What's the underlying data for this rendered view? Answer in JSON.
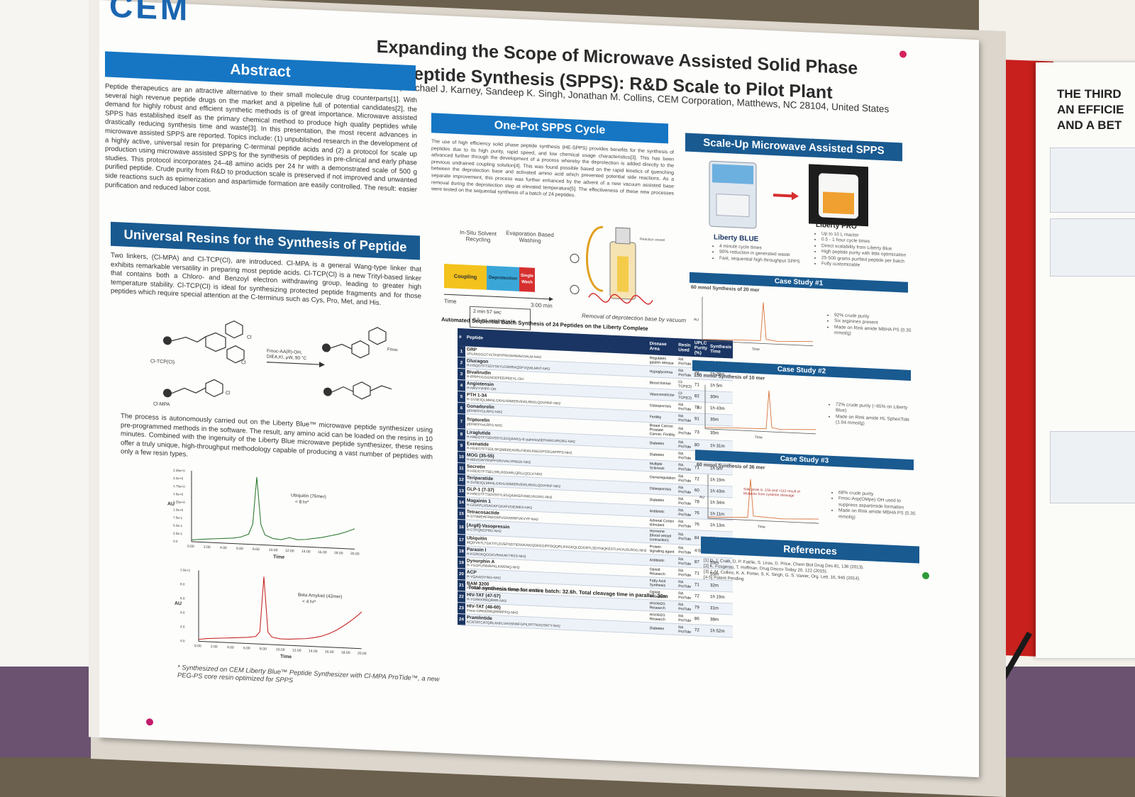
{
  "poster": {
    "logo": "CEM",
    "title_line1": "Expanding the Scope of Microwave Assisted Solid Phase",
    "title_line2": "Peptide Synthesis (SPPS): R&D Scale to Pilot Plant",
    "authors": "Keith A. Porter, Michael J. Karney, Sandeep K. Singh, Jonathan M. Collins, CEM Corporation, Matthews, NC 28104, United States"
  },
  "abstract": {
    "heading": "Abstract",
    "body": "Peptide therapeutics are an attractive alternative to their small molecule drug counterparts[1]. With several high revenue peptide drugs on the market and a pipeline full of potential candidates[2], the demand for highly robust and efficient synthetic methods is of great importance. Microwave assisted SPPS has established itself as the primary chemical method to produce high quality peptides while drastically reducing synthesis time and waste[3]. In this presentation, the most recent advances in microwave assisted SPPS are reported. Topics include: (1) unpublished research in the development of a highly active, universal resin for preparing C-terminal peptide acids and (2) a protocol for scale up production using microwave assisted SPPS for the synthesis of peptides in pre-clinical and early phase studies. This protocol incorporates 24–48 amino acids per 24 hr with a demonstrated scale of 500 g purified peptide. Crude purity from R&D to production scale is preserved if not improved and unwanted side reactions such as epimerization and aspartimide formation are easily controlled. The result: easier purification and reduced labor cost."
  },
  "resins": {
    "heading": "Universal Resins for the Synthesis of Peptide Acids",
    "body": "Two linkers, (Cl-MPA) and Cl-TCP(Cl), are introduced. Cl-MPA is a general Wang-type linker that exhibits remarkable versatility in preparing most peptide acids. Cl-TCP(Cl) is a new Trityl-based linker that contains both a Chloro- and Benzoyl electron withdrawing group, leading to greater high temperature stability. Cl-TCP(Cl) is ideal for synthesizing protected peptide fragments and for those peptides which require special attention at the C-terminus such as Cys, Pro, Met, and His.",
    "label_tcp": "Cl-TCP(Cl)",
    "label_mpa": "Cl-MPA",
    "reaction_line1": "Fmoc-AA(R)-OH,",
    "reaction_line2": "DIEA,KI, μW, 90 °C",
    "process_text": "The process is autonomously carried out on the Liberty Blue™ microwave peptide synthesizer using pre-programmed methods in the software. The result, any amino acid can be loaded on the resins in 10 minutes. Combined with the ingenuity of the Liberty Blue microwave peptide synthesizer, these resins offer a truly unique, high-throughput methodology capable of producing a vast number of peptides with only a few resin types.",
    "footnote": "* Synthesized on CEM Liberty Blue™ Peptide Synthesizer with Cl-MPA ProTide™, a new PEG-PS core resin optimized for SPPS"
  },
  "chart_data": [
    {
      "type": "line",
      "title": "",
      "ylabel": "AU",
      "xlabel": "Time",
      "annotation": "Ubiquitin (76mer)",
      "annotation2": "< 8 hr*",
      "x_ticks": [
        "0.00",
        "2.00",
        "4.00",
        "6.00",
        "8.00",
        "10.00",
        "12.00",
        "14.00",
        "16.00",
        "18.00",
        "20.00"
      ],
      "y_ticks": [
        "0.0",
        "2.5e-1",
        "5.0e-1",
        "7.5e-1",
        "1.0e+0",
        "1.25e+0",
        "1.5e+0",
        "1.75e+0",
        "2.0e+0",
        "2.25e+0"
      ],
      "x": [
        0,
        1,
        2,
        3,
        4,
        5,
        6,
        7,
        7.5,
        8,
        8.5,
        9,
        10,
        11,
        12,
        13,
        14,
        15,
        16,
        17,
        18,
        19,
        20
      ],
      "y": [
        0.05,
        0.08,
        0.1,
        0.12,
        0.14,
        0.16,
        0.2,
        0.3,
        0.6,
        2.0,
        0.6,
        0.3,
        0.2,
        0.18,
        0.25,
        0.2,
        0.22,
        0.26,
        0.3,
        0.36,
        0.42,
        0.5,
        0.6
      ],
      "color": "#2f7d32"
    },
    {
      "type": "line",
      "title": "",
      "ylabel": "AU",
      "xlabel": "Time",
      "annotation": "Beta Amyloid (42mer)",
      "annotation2": "< 4 hr*",
      "x_ticks": [
        "0.00",
        "2.00",
        "4.00",
        "6.00",
        "8.00",
        "10.00",
        "12.00",
        "14.00",
        "16.00",
        "18.00",
        "20.00"
      ],
      "y_ticks": [
        "0.0",
        "2.0",
        "4.0",
        "6.0",
        "8.0",
        "1.0e+1"
      ],
      "x": [
        0,
        1,
        2,
        3,
        4,
        5,
        6,
        7,
        7.5,
        8,
        8.5,
        9,
        10,
        11,
        12,
        13,
        14,
        15,
        16,
        17,
        18,
        19,
        20
      ],
      "y": [
        0.3,
        0.5,
        0.6,
        0.7,
        0.8,
        0.9,
        1.0,
        1.2,
        2.0,
        11.0,
        2.0,
        1.2,
        1.0,
        1.0,
        1.1,
        1.2,
        1.4,
        1.7,
        2.2,
        2.9,
        3.8,
        4.8,
        6.0
      ],
      "color": "#c62828"
    }
  ],
  "cycle": {
    "heading": "One-Pot SPPS Cycle",
    "body": "The use of high efficiency solid phase peptide synthesis (HE-SPPS) provides benefits for the synthesis of peptides due to its high purity, rapid speed, and low chemical usage characteristics[3]. This has been advanced further through the development of a process whereby the deprotection is added directly to the previous undrained coupling solution[4]. This was found possible based on the rapid kinetics of quenching between the deprotection base and activated amino acid which prevented potential side reactions. As a separate improvement, this process was further enhanced by the advent of a new vacuum assisted base removal during the deprotection step at elevated temperature[5]. The effectiveness of these new processes were tested on the sequential synthesis of a batch of 24 peptides.",
    "label_insitu": "In-Situ Solvent Recycling",
    "label_evap": "Evaporation Based Washing",
    "seg_coupling": "Coupling",
    "seg_deprotection": "Deprotection",
    "seg_wash": "Single Wash",
    "time_label": "Time",
    "time_end": "3:00 min",
    "stat1": "2 min 57 sec",
    "stat2": "8.5 mL waste/cycle",
    "vacuum_caption": "Removal of deprotection base by vacuum",
    "reaction_vessel": "Reaction vessel",
    "colors": {
      "coupling": "#f4c21c",
      "deprotection": "#3aa6d8",
      "wash": "#d62f2f"
    }
  },
  "batch": {
    "heading": "Automated Sequential Batch Synthesis of 24 Peptides on the Liberty Complete",
    "columns": [
      "#",
      "Peptide",
      "Disease Area",
      "Resin Used",
      "UPLC Purity (%)",
      "Synthesis Time"
    ],
    "rows": [
      {
        "n": "1",
        "name": "GRP",
        "seq": "VPLPAGGGTVLTKMYPRGNHWAVGHLM-NH2",
        "area": "Regulates gastrin release",
        "resin": "RA ProTide",
        "purity": "81",
        "time": "1h 22m"
      },
      {
        "n": "2",
        "name": "Glucagon",
        "seq": "H-HSQGTFTSDYSKYLDSRRAQDFVQWLMNT-NH2",
        "area": "Hypoglycemia",
        "resin": "RA ProTide",
        "purity": "75",
        "time": "1h 28m"
      },
      {
        "n": "3",
        "name": "Bivalirudin",
        "seq": "H-fPRPGGGGNGDFEEIPEEYL-OH",
        "area": "Blood thinner",
        "resin": "Cl-TCP(Cl)",
        "purity": "71",
        "time": "1h 5m"
      },
      {
        "n": "4",
        "name": "Angiotensin",
        "seq": "H-NRVYVHPF-OH",
        "area": "Vasoconstrictor",
        "resin": "Cl-TCP(Cl)",
        "purity": "82",
        "time": "30m"
      },
      {
        "n": "5",
        "name": "PTH 1-34",
        "seq": "H-SVSEIQLMHNLGKHLNSMERVEWLRKKLQDVHNF-NH2",
        "area": "Osteoporosis",
        "resin": "RA ProTide",
        "purity": "72",
        "time": "1h 43m"
      },
      {
        "n": "6",
        "name": "Gonadorelin",
        "seq": "pEHWSYGLRPG-NH2",
        "area": "Fertility",
        "resin": "RA ProTide",
        "purity": "91",
        "time": "35m"
      },
      {
        "n": "7",
        "name": "Triptorelin",
        "seq": "pEHWSYwLRPG-NH2",
        "area": "Breast Cancer, Prostate Cancer, Fertility",
        "resin": "RA ProTide",
        "purity": "73",
        "time": "35m"
      },
      {
        "n": "8",
        "name": "Liraglutide",
        "seq": "H-HAEGTFTSDVSSYLEGQAAK(γ-E-palmitoyl)EFIAWLVRGRG-NH2",
        "area": "Diabetes",
        "resin": "RA ProTide",
        "purity": "80",
        "time": "1h 31m"
      },
      {
        "n": "9",
        "name": "Exenatide",
        "seq": "H-HGEGTFTSDLSKQMEEEAVRLFIEWLKNGGPSSGAPPPS-NH2",
        "area": "Diabetes",
        "resin": "RA ProTide",
        "purity": "74",
        "time": "1h 58m"
      },
      {
        "n": "10",
        "name": "MOG (35-55)",
        "seq": "H-MEVGWYRSPFSRVVHLYRNGK-NH2",
        "area": "Multiple Sclerosis",
        "resin": "RA ProTide",
        "purity": "71",
        "time": "1h 5m"
      },
      {
        "n": "11",
        "name": "Secretin",
        "seq": "H-HSDGTFTSELSRLRDSARLQRLLQGLV-NH2",
        "area": "Osmoregulation",
        "resin": "RA ProTide",
        "purity": "72",
        "time": "1h 19m"
      },
      {
        "n": "12",
        "name": "Teriparatide",
        "seq": "H-SVSEIQLMHNLGKHLNSMERVEWLRKKLQDVHNF-NH2",
        "area": "Osteoporosis",
        "resin": "RA ProTide",
        "purity": "60",
        "time": "1h 43m"
      },
      {
        "n": "13",
        "name": "GLP-1 (7-37)",
        "seq": "H-HAEGTFTSDVSSYLEGQAAKEFIAWLVKGRG-NH2",
        "area": "Diabetes",
        "resin": "RA ProTide",
        "purity": "78",
        "time": "1h 34m"
      },
      {
        "n": "14",
        "name": "Magainin 1",
        "seq": "H-GIGKFLHSAGKFGKAFVGEIMKS-NH2",
        "area": "Antibiotic",
        "resin": "RA ProTide",
        "purity": "76",
        "time": "1h 11m"
      },
      {
        "n": "15",
        "name": "Tetracosactide",
        "seq": "H-SYSMEHFRWGKPVGKKRRPVKVYP-NH2",
        "area": "Adrenal Cortex stimulant",
        "resin": "RA ProTide",
        "purity": "76",
        "time": "1h 13m"
      },
      {
        "n": "16",
        "name": "[Arg8]-Vasopressin",
        "seq": "H-CYFQNCPRG-NH2",
        "area": "Hormone (blood vessel contraction)",
        "resin": "RA ProTide",
        "purity": "84",
        "time": "32m"
      },
      {
        "n": "17",
        "name": "Ubiquitin",
        "seq": "MQIFVKTLTGKTITLEVEPSDTIENVKAKIQDKEGIPPDQQRLIFAGKQLEDGRTLSDYNIQKESTLHLVLRLRGG-NH2",
        "area": "Protein signaling agent",
        "resin": "RA ProTide",
        "purity": "4:50",
        "time": "3h 44m"
      },
      {
        "n": "18",
        "name": "Parasin I",
        "seq": "H-KGRGKQGGKVRAKAKTRSS-NH2",
        "area": "Antibiotic",
        "resin": "RA ProTide",
        "purity": "87",
        "time": "59m"
      },
      {
        "n": "19",
        "name": "Dynorphin A",
        "seq": "H-YGGFLRRIRPKLKWDNQ-NH2",
        "area": "Opioid Research",
        "resin": "RA ProTide",
        "purity": "71",
        "time": "55m"
      },
      {
        "n": "20",
        "name": "ACP",
        "seq": "H-VQAAIDYING-NH2",
        "area": "Fatty Acid Synthesis",
        "resin": "RA ProTide",
        "purity": "71",
        "time": "32m"
      },
      {
        "n": "21",
        "name": "BAM 3200",
        "seq": "H-YGGFMRRVGRPEWWMDYQKRYGGFL-NH2",
        "area": "Opioid Research",
        "resin": "RA ProTide",
        "purity": "72",
        "time": "1h 19m"
      },
      {
        "n": "22",
        "name": "HIV-TAT (47-57)",
        "seq": "H-YGRKKRRQRRR-NH2",
        "area": "HIV/AIDS Research",
        "resin": "RA ProTide",
        "purity": "79",
        "time": "31m"
      },
      {
        "n": "23",
        "name": "HIV-TAT (48-60)",
        "seq": "Fmoc-GRKKRRQRRRPPQ-NH2",
        "area": "HIV/AIDS Research",
        "resin": "RA ProTide",
        "purity": "86",
        "time": "38m"
      },
      {
        "n": "24",
        "name": "Pramlintide",
        "seq": "KCNTATCATQRLANFLVHSSNNFGPILPPTNVGSNTY-NH2",
        "area": "Diabetes",
        "resin": "RA ProTide",
        "purity": "72",
        "time": "1h 52m"
      }
    ],
    "total": "Total synthesis time for entire batch: 32.6h. Total cleavage time in parallel: 30m"
  },
  "scaleup": {
    "heading": "Scale-Up Microwave Assisted SPPS",
    "blue_label": "Liberty BLUE",
    "pro_label": "Liberty PRO",
    "blue_bullets": [
      "4 minute cycle times",
      "90% reduction in generated waste",
      "Fast, sequential high throughput SPPS"
    ],
    "pro_bullets": [
      "Up to 10 L reactor",
      "0.5 - 1 hour cycle times",
      "Direct scalability from Liberty Blue",
      "High peptide purity with little optimization",
      "25-500 grams purified peptide per batch",
      "Fully customizable"
    ],
    "case1": {
      "heading": "Case Study #1",
      "sub": "60 mmol Synthesis of 20 mer",
      "bullets": [
        "92% crude purity",
        "Six arginines present",
        "Made on Rink amide MBHA PS (0.35 mmol/g)"
      ]
    },
    "case2": {
      "heading": "Case Study #2",
      "sub": "150 mmol Synthesis of 10 mer",
      "bullets": [
        "72% crude purity (~65% on Liberty Blue)",
        "Made on Rink amide HL SpheriTide (1.04 mmol/g)"
      ]
    },
    "case3": {
      "heading": "Case Study #3",
      "sub": "60 mmol Synthesis of 36 mer",
      "note": "Side peak is -156 and +112 result of Mutation from cysteine cleavage",
      "bullets": [
        "68% crude purity",
        "Fmoc-Asp(OMpe)-OH used to suppress aspartimide formation",
        "Made on Rink amide MBHA PS (0.35 mmol/g)"
      ]
    },
    "axis_x": "Time",
    "axis_y": "AU"
  },
  "references": {
    "heading": "References",
    "items": [
      "[1] D. J. Craik, D. P. Fairlie, S. Liras, D. Price, Chem Biol Drug Des 81, 136 (2013).",
      "[2] K. Fosgerau, T. Hoffman, Drug Discov Today 20, 122 (2015).",
      "[3] J. M. Collins, K. A. Porter, S. K. Singh, G. S. Vanier, Org. Lett. 16, 940 (2014).",
      "[4-5] Patent Pending"
    ]
  },
  "right_poster": {
    "title": "THE THIRD AN EFFICIE AND A BET"
  }
}
